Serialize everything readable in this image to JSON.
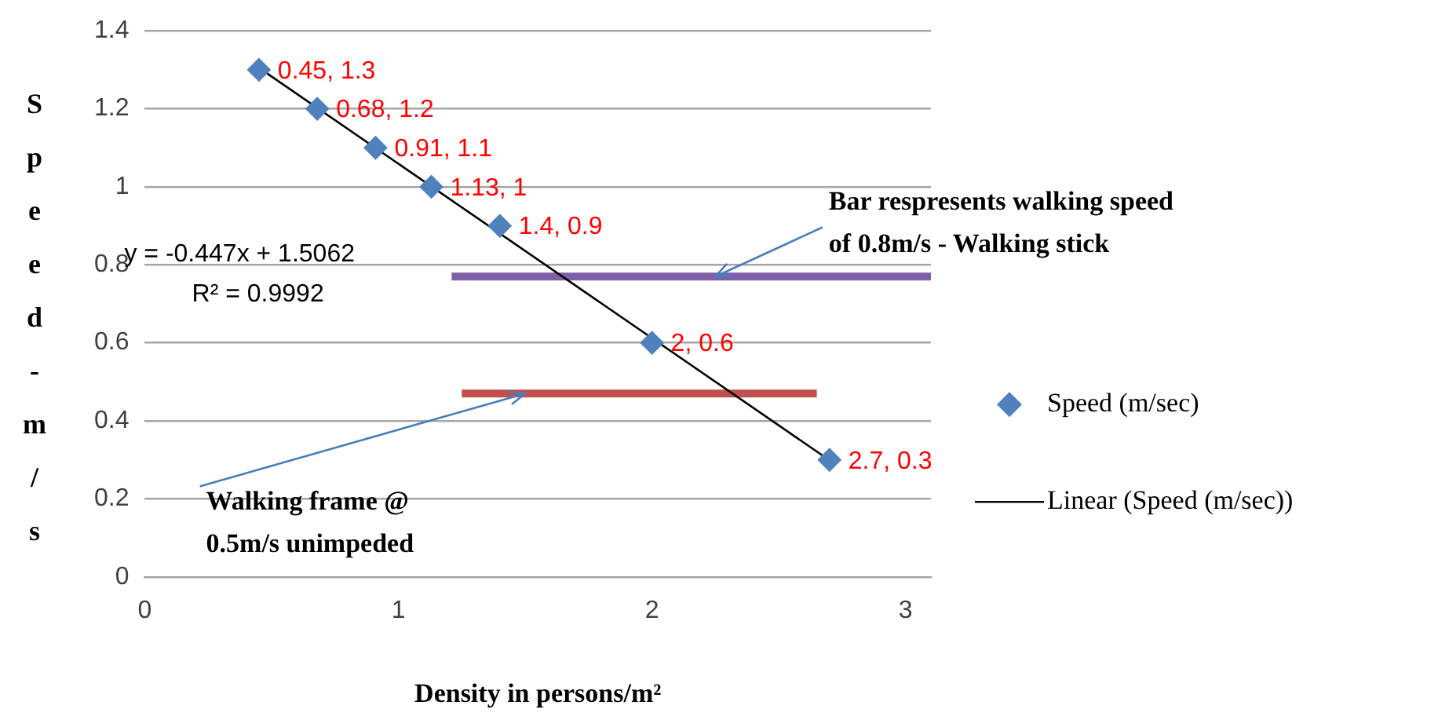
{
  "chart_data": {
    "type": "scatter",
    "xlabel": "Density in persons/m²",
    "ylabel": "Speed - m/s",
    "xlim": [
      0,
      3.1
    ],
    "xticks": [
      0,
      1,
      2,
      3
    ],
    "ylim": [
      0,
      1.4
    ],
    "yticks": [
      0,
      0.2,
      0.4,
      0.6,
      0.8,
      1,
      1.2,
      1.4
    ],
    "grid": "y",
    "legend": "right",
    "series": [
      {
        "type": "scatter",
        "name": "Speed (m/sec)",
        "color": "#4f81bd",
        "marker": "diamond",
        "x": [
          0.45,
          0.68,
          0.91,
          1.13,
          1.4,
          2,
          2.7
        ],
        "values": [
          1.3,
          1.2,
          1.1,
          1,
          0.9,
          0.6,
          0.3
        ],
        "value_labels": [
          "0.45, 1.3",
          "0.68, 1.2",
          "0.91, 1.1",
          "1.13, 1",
          "1.4, 0.9",
          "2, 0.6",
          "2.7, 0.3"
        ]
      },
      {
        "type": "line",
        "name": "Linear (Speed (m/sec))",
        "color": "#000000",
        "marker": "none",
        "x": [
          0.45,
          2.7
        ],
        "values": [
          1.305,
          0.299
        ]
      },
      {
        "type": "line",
        "color": "#7f5fa8",
        "marker": "none",
        "x": [
          1.21,
          3.1
        ],
        "values": [
          0.77,
          0.77
        ]
      },
      {
        "type": "line",
        "color": "#c0504d",
        "marker": "none",
        "x": [
          1.25,
          2.65
        ],
        "values": [
          0.47,
          0.47
        ]
      }
    ],
    "annotations": [
      {
        "text": "Bar respresents walking speed of 0.8m/s - Walking stick",
        "x": 2.25,
        "y": 0.77
      },
      {
        "text": "Walking frame @ 0.5m/s unimpeded",
        "x": 1.5,
        "y": 0.47
      },
      "y = -0.447x + 1.5062",
      "R² = 0.9992"
    ]
  }
}
